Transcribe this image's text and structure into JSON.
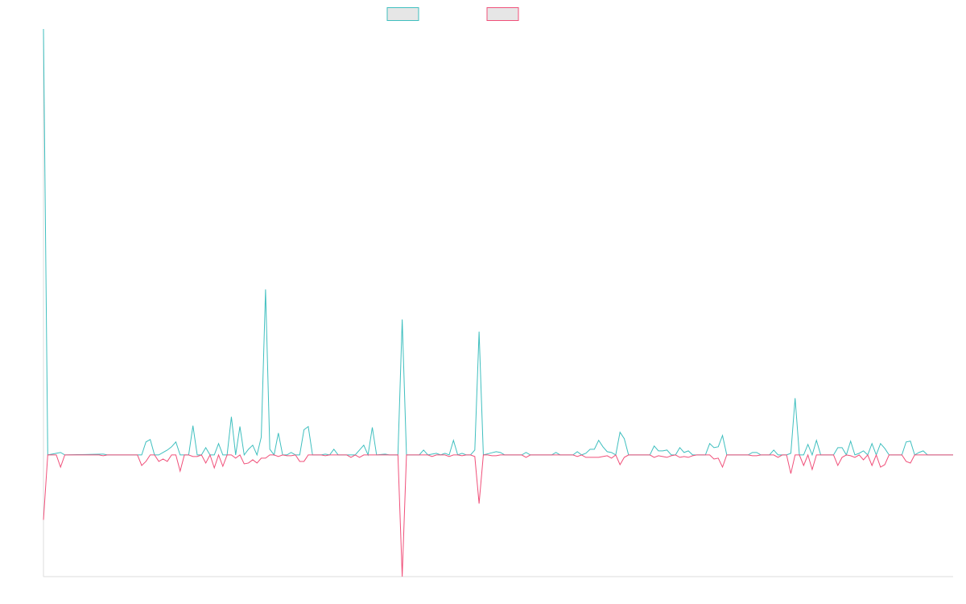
{
  "colors": {
    "positive": "#3fbfbf",
    "negative": "#f0507a",
    "axis": "#dcdcdc",
    "legend_fill": "#e6e6e6"
  },
  "chart_data": {
    "type": "line",
    "title": "",
    "xlabel": "",
    "ylabel": "",
    "grid": false,
    "legend": {
      "placement": "top-center",
      "labels": [
        "",
        ""
      ]
    },
    "x_count": 214,
    "ylim": [
      -150,
      525
    ],
    "baseline": 0,
    "series": [
      {
        "color_key": "positive",
        "points": [
          [
            0,
            525
          ],
          [
            1,
            0
          ],
          [
            4,
            3
          ],
          [
            5,
            0
          ],
          [
            14,
            1
          ],
          [
            15,
            0
          ],
          [
            23,
            0
          ],
          [
            24,
            16
          ],
          [
            25,
            19
          ],
          [
            26,
            0
          ],
          [
            27,
            0
          ],
          [
            29,
            6
          ],
          [
            30,
            10
          ],
          [
            31,
            16
          ],
          [
            32,
            0
          ],
          [
            33,
            0
          ],
          [
            34,
            0
          ],
          [
            35,
            36
          ],
          [
            36,
            0
          ],
          [
            37,
            0
          ],
          [
            38,
            9
          ],
          [
            39,
            0
          ],
          [
            40,
            0
          ],
          [
            41,
            14
          ],
          [
            42,
            0
          ],
          [
            43,
            0
          ],
          [
            44,
            47
          ],
          [
            45,
            0
          ],
          [
            46,
            35
          ],
          [
            47,
            0
          ],
          [
            48,
            7
          ],
          [
            49,
            12
          ],
          [
            50,
            0
          ],
          [
            51,
            22
          ],
          [
            52,
            204
          ],
          [
            53,
            7
          ],
          [
            54,
            0
          ],
          [
            55,
            27
          ],
          [
            56,
            0
          ],
          [
            57,
            0
          ],
          [
            58,
            3
          ],
          [
            59,
            0
          ],
          [
            60,
            0
          ],
          [
            61,
            31
          ],
          [
            62,
            35
          ],
          [
            63,
            0
          ],
          [
            64,
            0
          ],
          [
            65,
            0
          ],
          [
            66,
            1
          ],
          [
            67,
            0
          ],
          [
            68,
            7
          ],
          [
            69,
            0
          ],
          [
            73,
            0
          ],
          [
            74,
            6
          ],
          [
            75,
            12
          ],
          [
            76,
            0
          ],
          [
            77,
            34
          ],
          [
            78,
            0
          ],
          [
            80,
            1
          ],
          [
            81,
            0
          ],
          [
            83,
            0
          ],
          [
            84,
            167
          ],
          [
            85,
            0
          ],
          [
            88,
            0
          ],
          [
            89,
            6
          ],
          [
            90,
            0
          ],
          [
            92,
            2
          ],
          [
            93,
            0
          ],
          [
            94,
            2
          ],
          [
            95,
            0
          ],
          [
            96,
            18
          ],
          [
            97,
            0
          ],
          [
            98,
            2
          ],
          [
            99,
            0
          ],
          [
            100,
            0
          ],
          [
            101,
            6
          ],
          [
            102,
            152
          ],
          [
            103,
            0
          ],
          [
            106,
            4
          ],
          [
            107,
            3
          ],
          [
            108,
            0
          ],
          [
            111,
            0
          ],
          [
            112,
            0
          ],
          [
            113,
            3
          ],
          [
            114,
            0
          ],
          [
            119,
            0
          ],
          [
            120,
            3
          ],
          [
            121,
            0
          ],
          [
            124,
            0
          ],
          [
            125,
            4
          ],
          [
            126,
            0
          ],
          [
            127,
            2
          ],
          [
            128,
            7
          ],
          [
            129,
            7
          ],
          [
            130,
            18
          ],
          [
            131,
            10
          ],
          [
            132,
            4
          ],
          [
            133,
            3
          ],
          [
            134,
            0
          ],
          [
            135,
            28
          ],
          [
            136,
            20
          ],
          [
            137,
            0
          ],
          [
            138,
            0
          ],
          [
            142,
            0
          ],
          [
            143,
            11
          ],
          [
            144,
            5
          ],
          [
            145,
            5
          ],
          [
            146,
            6
          ],
          [
            147,
            0
          ],
          [
            148,
            0
          ],
          [
            149,
            9
          ],
          [
            150,
            3
          ],
          [
            151,
            5
          ],
          [
            152,
            0
          ],
          [
            153,
            0
          ],
          [
            154,
            0
          ],
          [
            155,
            0
          ],
          [
            156,
            14
          ],
          [
            157,
            9
          ],
          [
            158,
            10
          ],
          [
            159,
            24
          ],
          [
            160,
            0
          ],
          [
            161,
            0
          ],
          [
            165,
            0
          ],
          [
            166,
            3
          ],
          [
            167,
            3
          ],
          [
            168,
            0
          ],
          [
            169,
            0
          ],
          [
            170,
            0
          ],
          [
            171,
            6
          ],
          [
            172,
            0
          ],
          [
            173,
            0
          ],
          [
            174,
            0
          ],
          [
            175,
            2
          ],
          [
            176,
            70
          ],
          [
            177,
            0
          ],
          [
            178,
            0
          ],
          [
            179,
            13
          ],
          [
            180,
            0
          ],
          [
            181,
            18
          ],
          [
            182,
            0
          ],
          [
            183,
            0
          ],
          [
            184,
            0
          ],
          [
            185,
            0
          ],
          [
            186,
            9
          ],
          [
            187,
            9
          ],
          [
            188,
            0
          ],
          [
            189,
            17
          ],
          [
            190,
            0
          ],
          [
            191,
            2
          ],
          [
            192,
            5
          ],
          [
            193,
            0
          ],
          [
            194,
            14
          ],
          [
            195,
            0
          ],
          [
            196,
            14
          ],
          [
            197,
            8
          ],
          [
            198,
            0
          ],
          [
            199,
            0
          ],
          [
            200,
            0
          ],
          [
            201,
            0
          ],
          [
            202,
            16
          ],
          [
            203,
            17
          ],
          [
            204,
            0
          ],
          [
            205,
            3
          ],
          [
            206,
            5
          ],
          [
            207,
            0
          ],
          [
            213,
            0
          ]
        ]
      },
      {
        "color_key": "negative",
        "points": [
          [
            0,
            -80
          ],
          [
            1,
            0
          ],
          [
            3,
            0
          ],
          [
            4,
            -15
          ],
          [
            5,
            0
          ],
          [
            13,
            0
          ],
          [
            14,
            -1
          ],
          [
            15,
            0
          ],
          [
            22,
            0
          ],
          [
            23,
            -13
          ],
          [
            24,
            -8
          ],
          [
            25,
            0
          ],
          [
            26,
            0
          ],
          [
            27,
            -8
          ],
          [
            28,
            -5
          ],
          [
            29,
            -8
          ],
          [
            30,
            0
          ],
          [
            31,
            0
          ],
          [
            32,
            -20
          ],
          [
            33,
            0
          ],
          [
            34,
            0
          ],
          [
            35,
            -2
          ],
          [
            36,
            -2
          ],
          [
            37,
            0
          ],
          [
            38,
            -10
          ],
          [
            39,
            0
          ],
          [
            40,
            -16
          ],
          [
            41,
            0
          ],
          [
            42,
            -14
          ],
          [
            43,
            0
          ],
          [
            44,
            0
          ],
          [
            45,
            -4
          ],
          [
            46,
            0
          ],
          [
            47,
            -11
          ],
          [
            48,
            -10
          ],
          [
            49,
            -6
          ],
          [
            50,
            -10
          ],
          [
            51,
            -4
          ],
          [
            52,
            -4
          ],
          [
            53,
            0
          ],
          [
            54,
            0
          ],
          [
            55,
            -2
          ],
          [
            56,
            0
          ],
          [
            57,
            -1
          ],
          [
            58,
            -1
          ],
          [
            59,
            0
          ],
          [
            60,
            -8
          ],
          [
            61,
            -8
          ],
          [
            62,
            0
          ],
          [
            63,
            0
          ],
          [
            64,
            0
          ],
          [
            65,
            0
          ],
          [
            66,
            -1
          ],
          [
            67,
            0
          ],
          [
            68,
            0
          ],
          [
            69,
            0
          ],
          [
            70,
            0
          ],
          [
            71,
            0
          ],
          [
            72,
            -3
          ],
          [
            73,
            0
          ],
          [
            74,
            -3
          ],
          [
            75,
            0
          ],
          [
            76,
            0
          ],
          [
            77,
            0
          ],
          [
            78,
            0
          ],
          [
            79,
            0
          ],
          [
            80,
            0
          ],
          [
            81,
            0
          ],
          [
            82,
            0
          ],
          [
            83,
            0
          ],
          [
            84,
            -150
          ],
          [
            85,
            0
          ],
          [
            88,
            0
          ],
          [
            89,
            0
          ],
          [
            90,
            0
          ],
          [
            91,
            -2
          ],
          [
            92,
            0
          ],
          [
            93,
            0
          ],
          [
            94,
            0
          ],
          [
            95,
            -2
          ],
          [
            96,
            0
          ],
          [
            97,
            0
          ],
          [
            98,
            -1
          ],
          [
            99,
            0
          ],
          [
            100,
            0
          ],
          [
            101,
            -2
          ],
          [
            102,
            -60
          ],
          [
            103,
            0
          ],
          [
            104,
            0
          ],
          [
            105,
            -1
          ],
          [
            106,
            -1
          ],
          [
            107,
            0
          ],
          [
            112,
            0
          ],
          [
            113,
            -3
          ],
          [
            114,
            0
          ],
          [
            119,
            0
          ],
          [
            120,
            0
          ],
          [
            121,
            0
          ],
          [
            124,
            0
          ],
          [
            125,
            -2
          ],
          [
            126,
            0
          ],
          [
            127,
            -3
          ],
          [
            128,
            -3
          ],
          [
            129,
            -3
          ],
          [
            130,
            -3
          ],
          [
            131,
            -2
          ],
          [
            132,
            -1
          ],
          [
            133,
            -4
          ],
          [
            134,
            0
          ],
          [
            135,
            -12
          ],
          [
            136,
            -3
          ],
          [
            137,
            0
          ],
          [
            142,
            0
          ],
          [
            143,
            -3
          ],
          [
            144,
            -1
          ],
          [
            145,
            -2
          ],
          [
            146,
            -3
          ],
          [
            147,
            -1
          ],
          [
            148,
            0
          ],
          [
            149,
            -3
          ],
          [
            150,
            -2
          ],
          [
            151,
            -3
          ],
          [
            152,
            -1
          ],
          [
            153,
            0
          ],
          [
            154,
            0
          ],
          [
            155,
            0
          ],
          [
            156,
            0
          ],
          [
            157,
            -5
          ],
          [
            158,
            -4
          ],
          [
            159,
            -15
          ],
          [
            160,
            0
          ],
          [
            161,
            0
          ],
          [
            165,
            0
          ],
          [
            166,
            -1
          ],
          [
            167,
            -1
          ],
          [
            168,
            0
          ],
          [
            169,
            0
          ],
          [
            170,
            0
          ],
          [
            171,
            0
          ],
          [
            172,
            -3
          ],
          [
            173,
            0
          ],
          [
            174,
            0
          ],
          [
            175,
            -23
          ],
          [
            176,
            0
          ],
          [
            177,
            0
          ],
          [
            178,
            -13
          ],
          [
            179,
            0
          ],
          [
            180,
            -18
          ],
          [
            181,
            0
          ],
          [
            182,
            0
          ],
          [
            183,
            0
          ],
          [
            184,
            0
          ],
          [
            185,
            0
          ],
          [
            186,
            -13
          ],
          [
            187,
            -3
          ],
          [
            188,
            0
          ],
          [
            189,
            -1
          ],
          [
            190,
            -3
          ],
          [
            191,
            0
          ],
          [
            192,
            -6
          ],
          [
            193,
            0
          ],
          [
            194,
            -13
          ],
          [
            195,
            0
          ],
          [
            196,
            -15
          ],
          [
            197,
            -12
          ],
          [
            198,
            0
          ],
          [
            199,
            0
          ],
          [
            200,
            0
          ],
          [
            201,
            0
          ],
          [
            202,
            -8
          ],
          [
            203,
            -10
          ],
          [
            204,
            0
          ],
          [
            205,
            0
          ],
          [
            206,
            0
          ],
          [
            207,
            0
          ],
          [
            213,
            0
          ]
        ]
      }
    ]
  }
}
